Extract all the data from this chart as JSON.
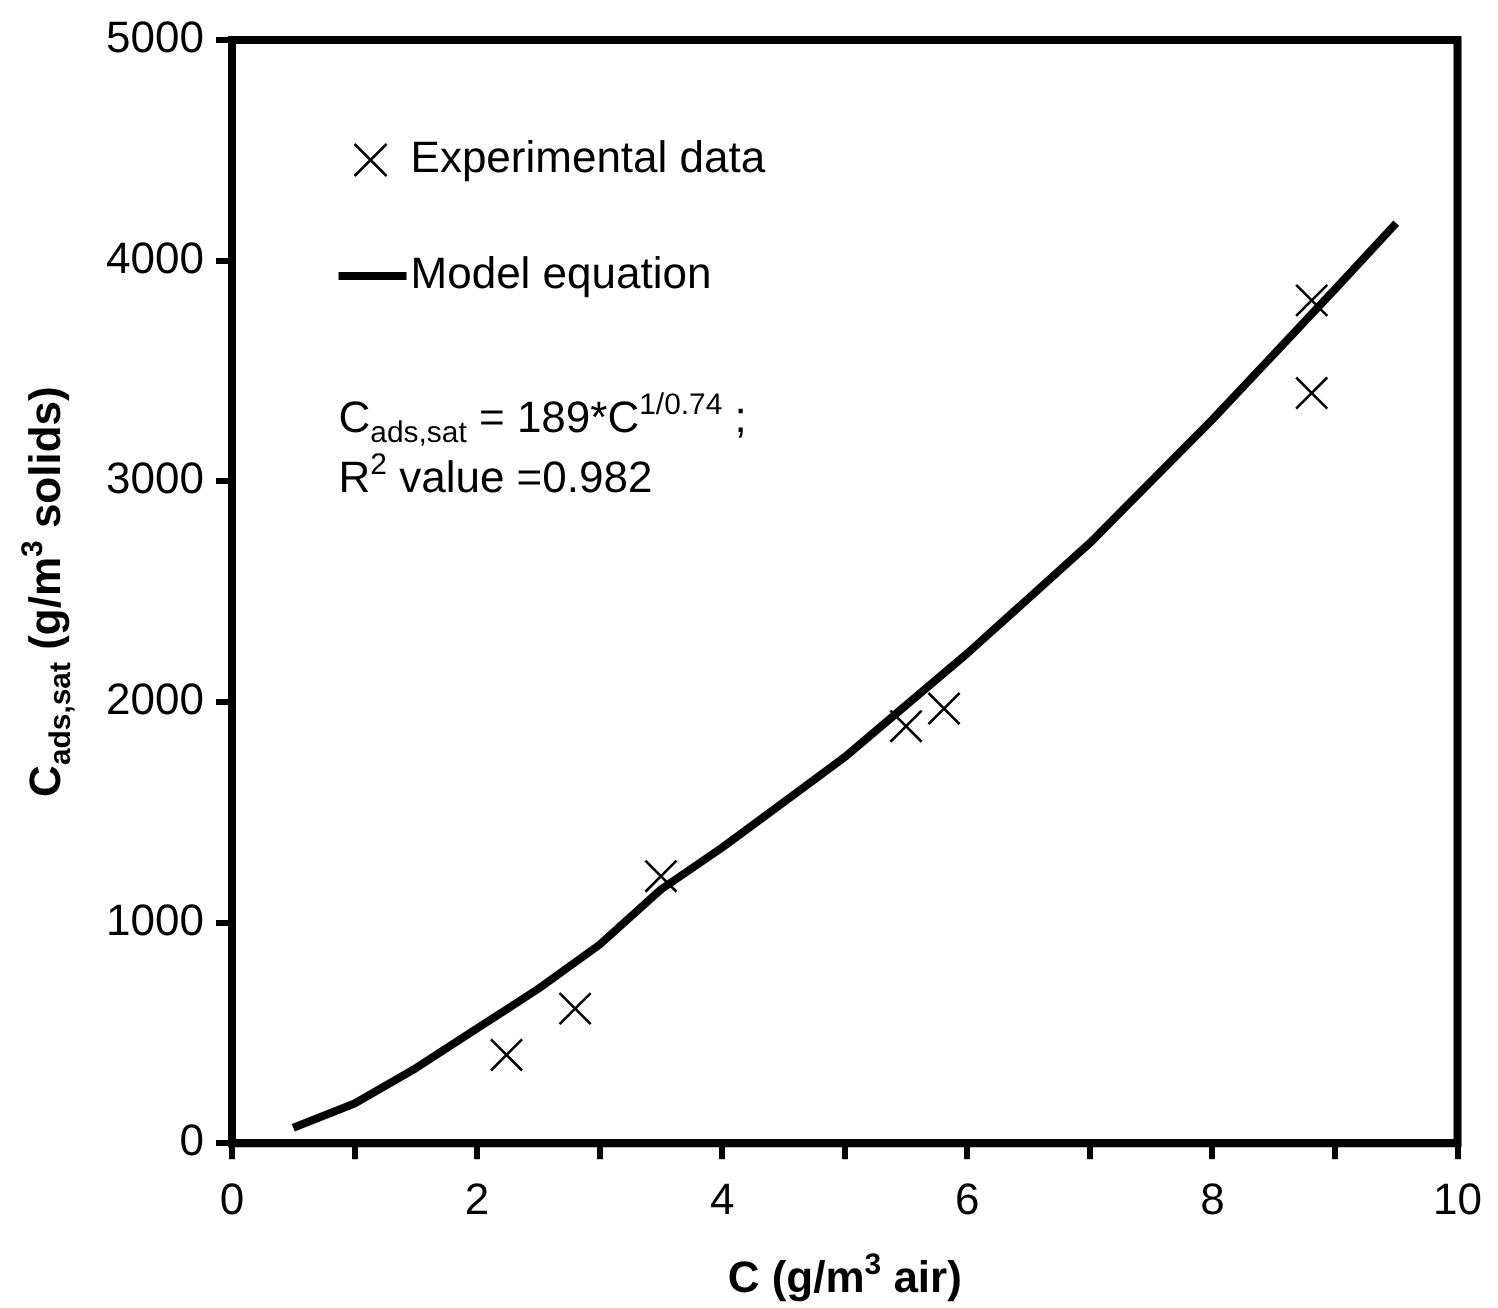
{
  "chart_data": {
    "type": "scatter",
    "xlabel": "C (g/m$^{3}$ air)",
    "ylabel": "C$_{ads,sat}$ (g/m$^{3}$ solids)",
    "xlim": [
      0,
      10
    ],
    "xticks": [
      0,
      {
        "value": 1,
        "label": null
      },
      2,
      {
        "value": 3,
        "label": null
      },
      4,
      {
        "value": 5,
        "label": null
      },
      6,
      {
        "value": 7,
        "label": null
      },
      8,
      {
        "value": 9,
        "label": null
      },
      10
    ],
    "ylim": [
      0,
      5000
    ],
    "yticks": [
      0,
      1000,
      2000,
      3000,
      4000,
      5000
    ],
    "grid": false,
    "legend": "top left",
    "annotations": [
      "C$_{ads,sat}$ = 189*C$^{1/0.74}$ ;",
      "R$^{2}$ value =0.982"
    ],
    "series": [
      {
        "name": "Experimental data",
        "marker": "cross",
        "color": "#000000",
        "x": [
          2.24,
          2.8,
          3.5,
          5.5,
          5.81,
          8.81,
          8.81
        ],
        "values": [
          400,
          610,
          1210,
          1890,
          1970,
          3820,
          3400
        ]
      },
      {
        "name": "Model equation",
        "type": "line",
        "marker": "none",
        "line_style": "solid",
        "color": "#000000",
        "x": [
          0.5,
          1,
          1.5,
          2,
          2.5,
          3,
          3.5,
          4,
          5,
          6,
          7,
          8,
          9,
          9.5
        ],
        "values": [
          70,
          180,
          340,
          520,
          700,
          900,
          1150,
          1340,
          1750,
          2220,
          2720,
          3280,
          3870,
          4170
        ]
      }
    ]
  }
}
